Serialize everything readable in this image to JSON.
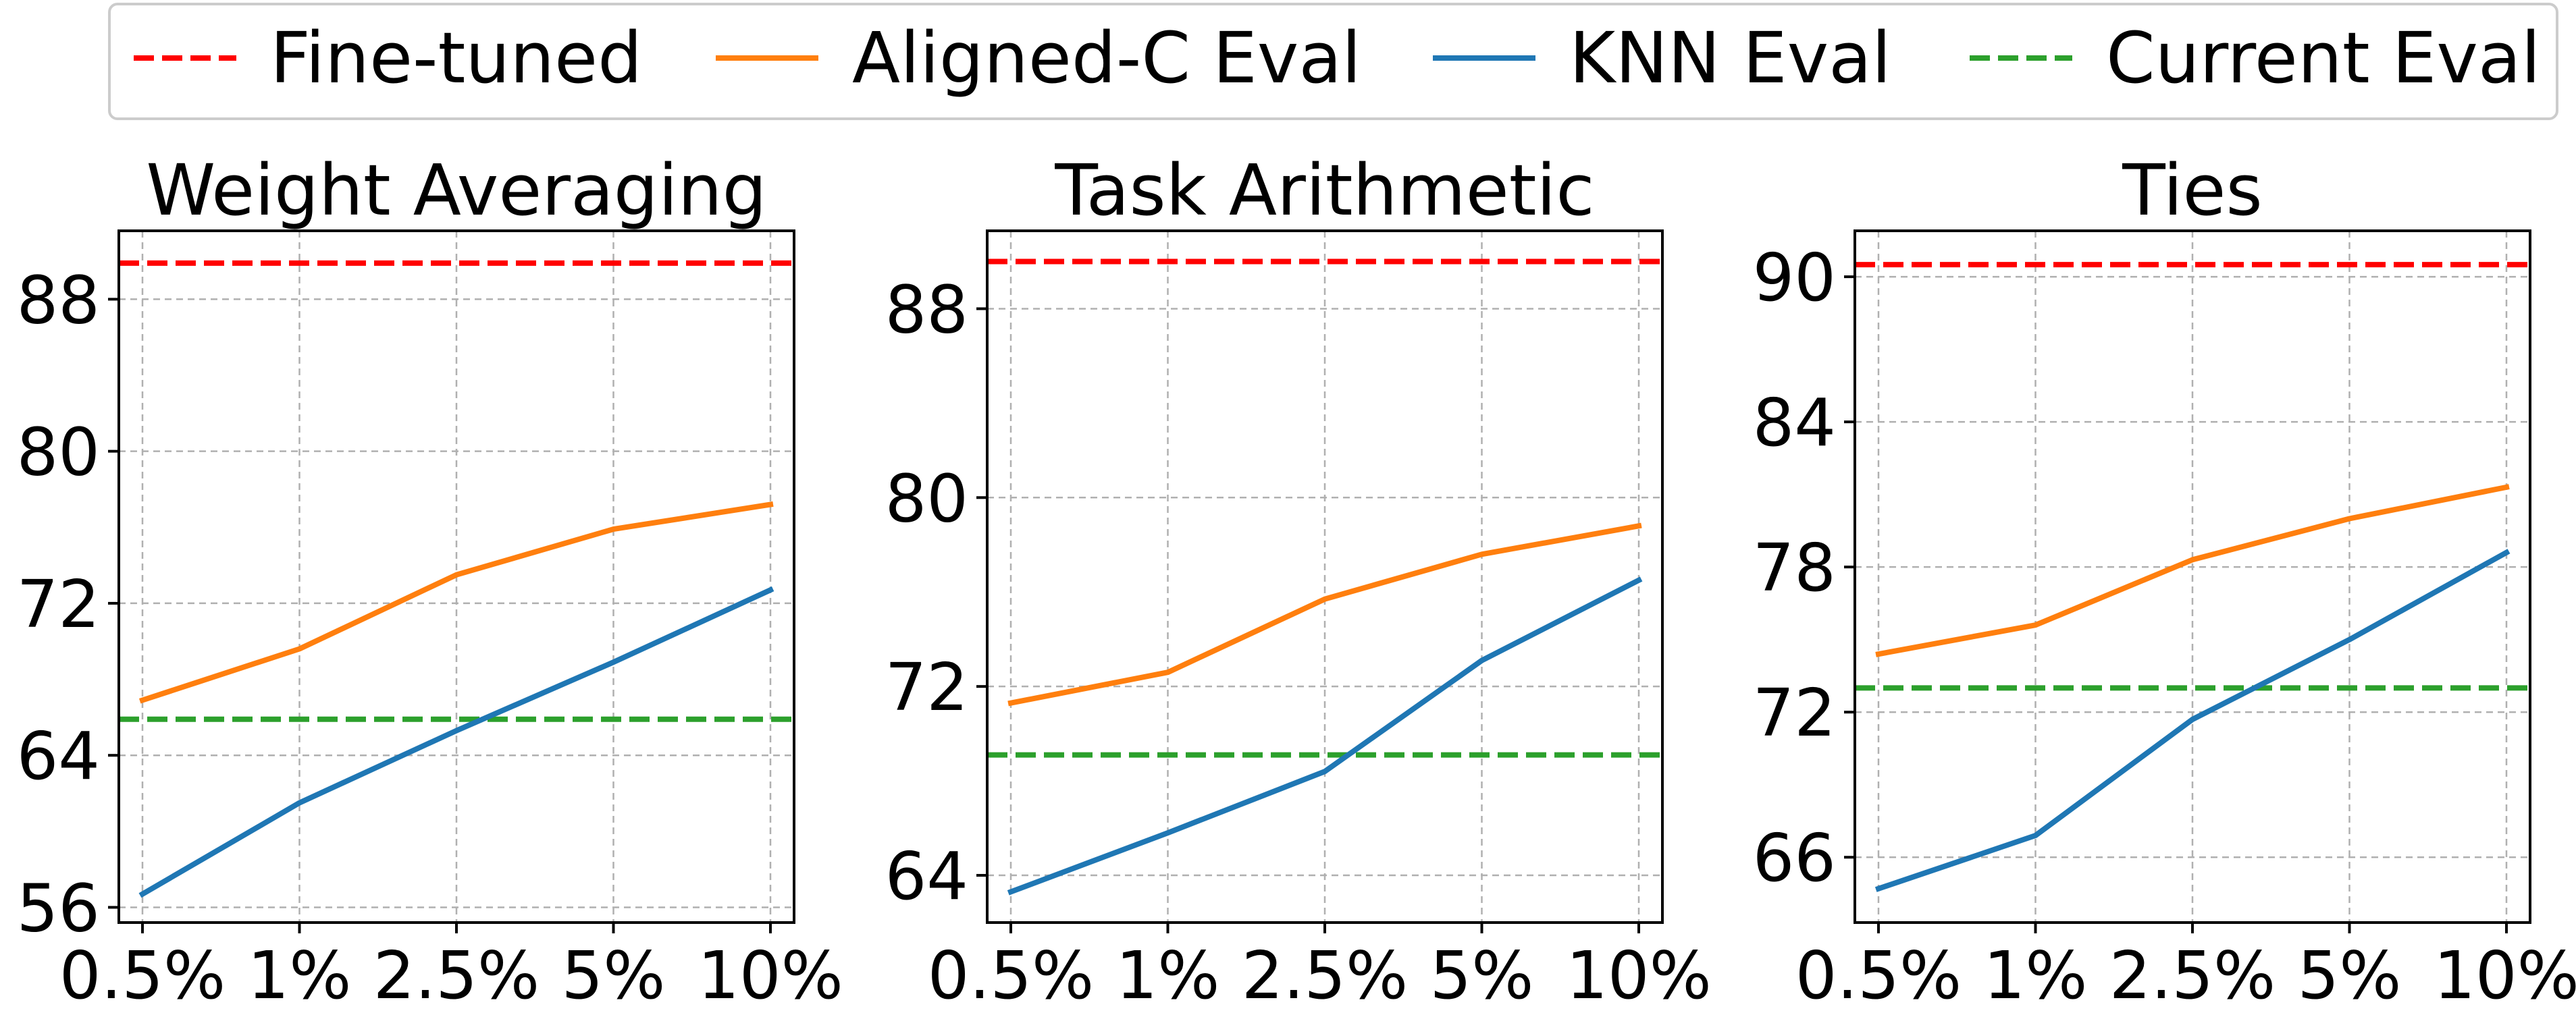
{
  "legend": [
    {
      "label": "Fine-tuned",
      "color": "#ff0000",
      "dashed": true
    },
    {
      "label": "Aligned-C Eval",
      "color": "#ff7f0e",
      "dashed": false
    },
    {
      "label": "KNN Eval",
      "color": "#1f77b4",
      "dashed": false
    },
    {
      "label": "Current Eval",
      "color": "#2ca02c",
      "dashed": true
    }
  ],
  "chart_data": [
    {
      "type": "line",
      "title": "Weight Averaging",
      "categories": [
        "0.5%",
        "1%",
        "2.5%",
        "5%",
        "10%"
      ],
      "yticks": [
        56,
        64,
        72,
        80,
        88
      ],
      "ylim": [
        55.2,
        91.6
      ],
      "grid": true,
      "xlabel": "",
      "ylabel": "",
      "series": [
        {
          "name": "Aligned-C Eval",
          "values": [
            66.9,
            69.6,
            73.5,
            75.9,
            77.2
          ]
        },
        {
          "name": "KNN Eval",
          "values": [
            56.7,
            61.5,
            65.3,
            68.9,
            72.7
          ]
        }
      ],
      "reference_lines": [
        {
          "name": "Fine-tuned",
          "value": 89.9
        },
        {
          "name": "Current Eval",
          "value": 65.9
        }
      ]
    },
    {
      "type": "line",
      "title": "Task Arithmetic",
      "categories": [
        "0.5%",
        "1%",
        "2.5%",
        "5%",
        "10%"
      ],
      "yticks": [
        64,
        72,
        80,
        88
      ],
      "ylim": [
        62.0,
        91.3
      ],
      "grid": true,
      "xlabel": "",
      "ylabel": "",
      "series": [
        {
          "name": "Aligned-C Eval",
          "values": [
            71.3,
            72.6,
            75.7,
            77.6,
            78.8
          ]
        },
        {
          "name": "KNN Eval",
          "values": [
            63.3,
            65.8,
            68.4,
            73.1,
            76.5
          ]
        }
      ],
      "reference_lines": [
        {
          "name": "Fine-tuned",
          "value": 90.0
        },
        {
          "name": "Current Eval",
          "value": 69.1
        }
      ]
    },
    {
      "type": "line",
      "title": "Ties",
      "categories": [
        "0.5%",
        "1%",
        "2.5%",
        "5%",
        "10%"
      ],
      "yticks": [
        66,
        72,
        78,
        84,
        90
      ],
      "ylim": [
        63.3,
        91.9
      ],
      "grid": true,
      "xlabel": "",
      "ylabel": "",
      "series": [
        {
          "name": "Aligned-C Eval",
          "values": [
            74.4,
            75.6,
            78.3,
            80.0,
            81.3
          ]
        },
        {
          "name": "KNN Eval",
          "values": [
            64.7,
            66.9,
            71.7,
            75.0,
            78.6
          ]
        }
      ],
      "reference_lines": [
        {
          "name": "Fine-tuned",
          "value": 90.5
        },
        {
          "name": "Current Eval",
          "value": 73.0
        }
      ]
    }
  ]
}
